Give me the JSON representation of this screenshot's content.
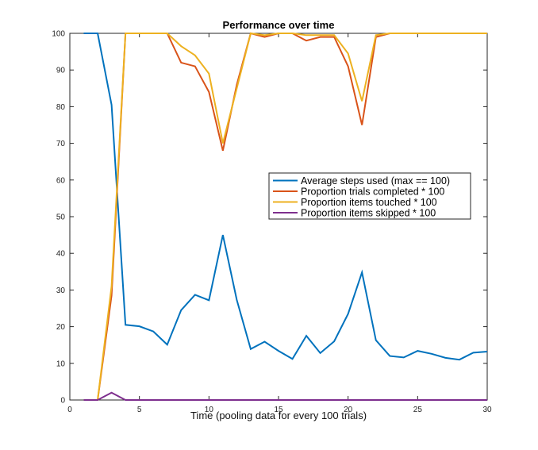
{
  "chart_data": {
    "type": "line",
    "title": "Performance over time",
    "xlabel": "Time (pooling data for every 100 trials)",
    "ylabel": "",
    "xlim": [
      0,
      30
    ],
    "ylim": [
      0,
      100
    ],
    "xticks": [
      0,
      5,
      10,
      15,
      20,
      25,
      30
    ],
    "yticks": [
      0,
      10,
      20,
      30,
      40,
      50,
      60,
      70,
      80,
      90,
      100
    ],
    "grid": false,
    "legend_position": "center-right",
    "x": [
      1,
      2,
      3,
      4,
      5,
      6,
      7,
      8,
      9,
      10,
      11,
      12,
      13,
      14,
      15,
      16,
      17,
      18,
      19,
      20,
      21,
      22,
      23,
      24,
      25,
      26,
      27,
      28,
      29,
      30
    ],
    "series": [
      {
        "name": "Average steps used (max == 100)",
        "color": "#0072bd",
        "values": [
          100,
          100,
          80.5,
          20.5,
          20.1,
          18.7,
          15.1,
          24.5,
          28.7,
          27.2,
          45.0,
          27.3,
          13.9,
          15.9,
          13.4,
          11.2,
          17.5,
          12.8,
          16.0,
          23.5,
          34.8,
          16.3,
          12.0,
          11.6,
          13.4,
          12.6,
          11.5,
          11.0,
          12.9,
          13.2
        ]
      },
      {
        "name": "Proportion trials completed * 100",
        "color": "#d95319",
        "values": [
          0,
          0,
          28.5,
          100,
          100,
          100,
          100,
          92,
          91,
          84,
          68,
          86,
          100,
          99,
          100,
          100,
          98,
          99,
          99,
          91,
          75,
          99,
          100,
          100,
          100,
          100,
          100,
          100,
          100,
          100
        ]
      },
      {
        "name": "Proportion items touched * 100",
        "color": "#edb120",
        "values": [
          0,
          0,
          31,
          100,
          100,
          100,
          100,
          96.5,
          94,
          89,
          70,
          85,
          100,
          99.5,
          100,
          100,
          99.5,
          99.5,
          99.5,
          94.5,
          81.5,
          99.5,
          100,
          100,
          100,
          100,
          100,
          100,
          100,
          100
        ]
      },
      {
        "name": "Proportion items skipped * 100",
        "color": "#7e2f8e",
        "values": [
          0,
          0,
          2,
          0,
          0,
          0,
          0,
          0,
          0,
          0,
          0,
          0,
          0,
          0,
          0,
          0,
          0,
          0,
          0,
          0,
          0,
          0,
          0,
          0,
          0,
          0,
          0,
          0,
          0,
          0
        ]
      }
    ]
  }
}
